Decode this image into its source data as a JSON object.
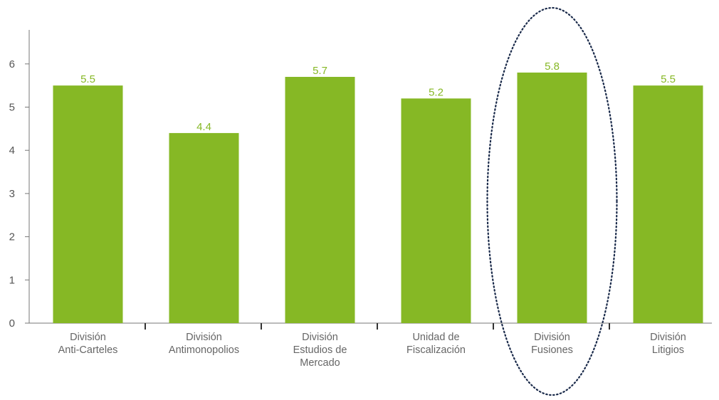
{
  "chart_data": {
    "type": "bar",
    "categories": [
      [
        "División",
        "Anti-Carteles"
      ],
      [
        "División",
        "Antimonopolios"
      ],
      [
        "División",
        "Estudios de",
        "Mercado"
      ],
      [
        "Unidad de",
        "Fiscalización"
      ],
      [
        "División",
        "Fusiones"
      ],
      [
        "División",
        "Litigios"
      ]
    ],
    "values": [
      5.5,
      4.4,
      5.7,
      5.2,
      5.8,
      5.5
    ],
    "value_labels": [
      "5.5",
      "4.4",
      "5.7",
      "5.2",
      "5.8",
      "5.5"
    ],
    "yticks": [
      0,
      1,
      2,
      3,
      4,
      5,
      6
    ],
    "ylim": [
      0,
      6.6
    ],
    "grid": false,
    "bar_color": "#86b825",
    "value_label_color": "#86b825",
    "axis_color": "#777777",
    "tick_label_color": "#555555",
    "category_label_color": "#666666",
    "highlight": {
      "category_index": 4,
      "style": "dotted-ellipse",
      "color": "#1a2a4a"
    }
  }
}
